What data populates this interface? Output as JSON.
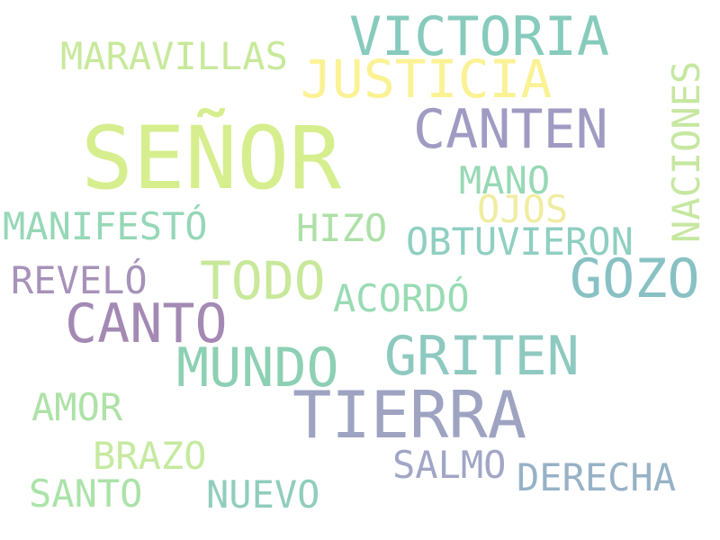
{
  "words": [
    {
      "text": "SEÑOR",
      "color": "#d6ee8e"
    },
    {
      "text": "TIERRA",
      "color": "#9ea3c1"
    },
    {
      "text": "VICTORIA",
      "color": "#86cbbc"
    },
    {
      "text": "JUSTICIA",
      "color": "#faf294"
    },
    {
      "text": "CANTEN",
      "color": "#9f9bc3"
    },
    {
      "text": "CANTO",
      "color": "#a389b3"
    },
    {
      "text": "GOZO",
      "color": "#88c1c4"
    },
    {
      "text": "MUNDO",
      "color": "#8dd0b4"
    },
    {
      "text": "TODO",
      "color": "#c8e89a"
    },
    {
      "text": "GRITEN",
      "color": "#8ec9c0"
    },
    {
      "text": "MARAVILLAS",
      "color": "#c8e99b"
    },
    {
      "text": "NACIONES",
      "color": "#c6e7a0"
    },
    {
      "text": "MANIFESTÓ",
      "color": "#96d7b7"
    },
    {
      "text": "OBTUVIERON",
      "color": "#8fcfc1"
    },
    {
      "text": "MANO",
      "color": "#97d9b5"
    },
    {
      "text": "OJOS",
      "color": "#f0eda2"
    },
    {
      "text": "HIZO",
      "color": "#aee0a8"
    },
    {
      "text": "REVELÓ",
      "color": "#a792b9"
    },
    {
      "text": "ACORDÓ",
      "color": "#99dbb4"
    },
    {
      "text": "AMOR",
      "color": "#aee2a8"
    },
    {
      "text": "BRAZO",
      "color": "#c6eaa0"
    },
    {
      "text": "SALMO",
      "color": "#a1a6c6"
    },
    {
      "text": "DERECHA",
      "color": "#97b2c6"
    },
    {
      "text": "SANTO",
      "color": "#abe3a9"
    },
    {
      "text": "NUEVO",
      "color": "#90cdbd"
    }
  ]
}
